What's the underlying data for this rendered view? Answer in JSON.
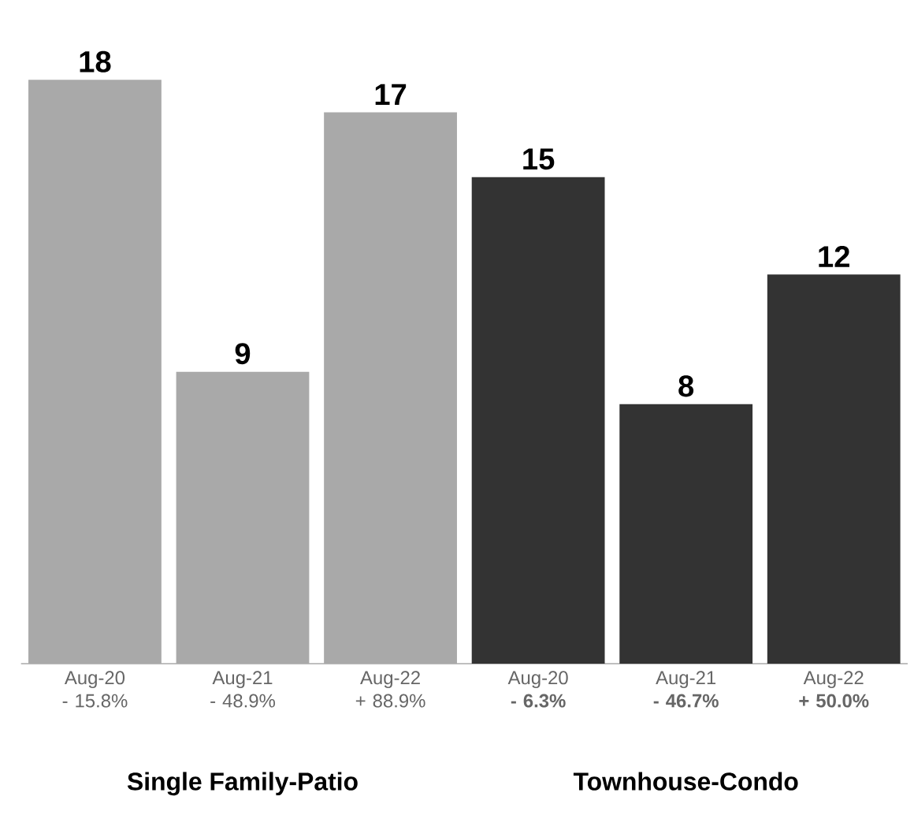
{
  "chart_data": {
    "type": "bar",
    "categories": [
      "Aug-20 - 15.8%",
      "Aug-21 - 48.9%",
      "Aug-22 + 88.9%",
      "Aug-20 **- 6.3%**",
      "Aug-21 **- 46.7%**",
      "Aug-22 **+ 50.0%**"
    ],
    "values": [
      18,
      9,
      17,
      15,
      8,
      12
    ],
    "colors": [
      "#a9a9a9",
      "#a9a9a9",
      "#a9a9a9",
      "#333333",
      "#333333",
      "#333333"
    ],
    "data_labels": true,
    "annotations": [
      "Single Family-Patio",
      "Townhouse-Condo"
    ]
  }
}
